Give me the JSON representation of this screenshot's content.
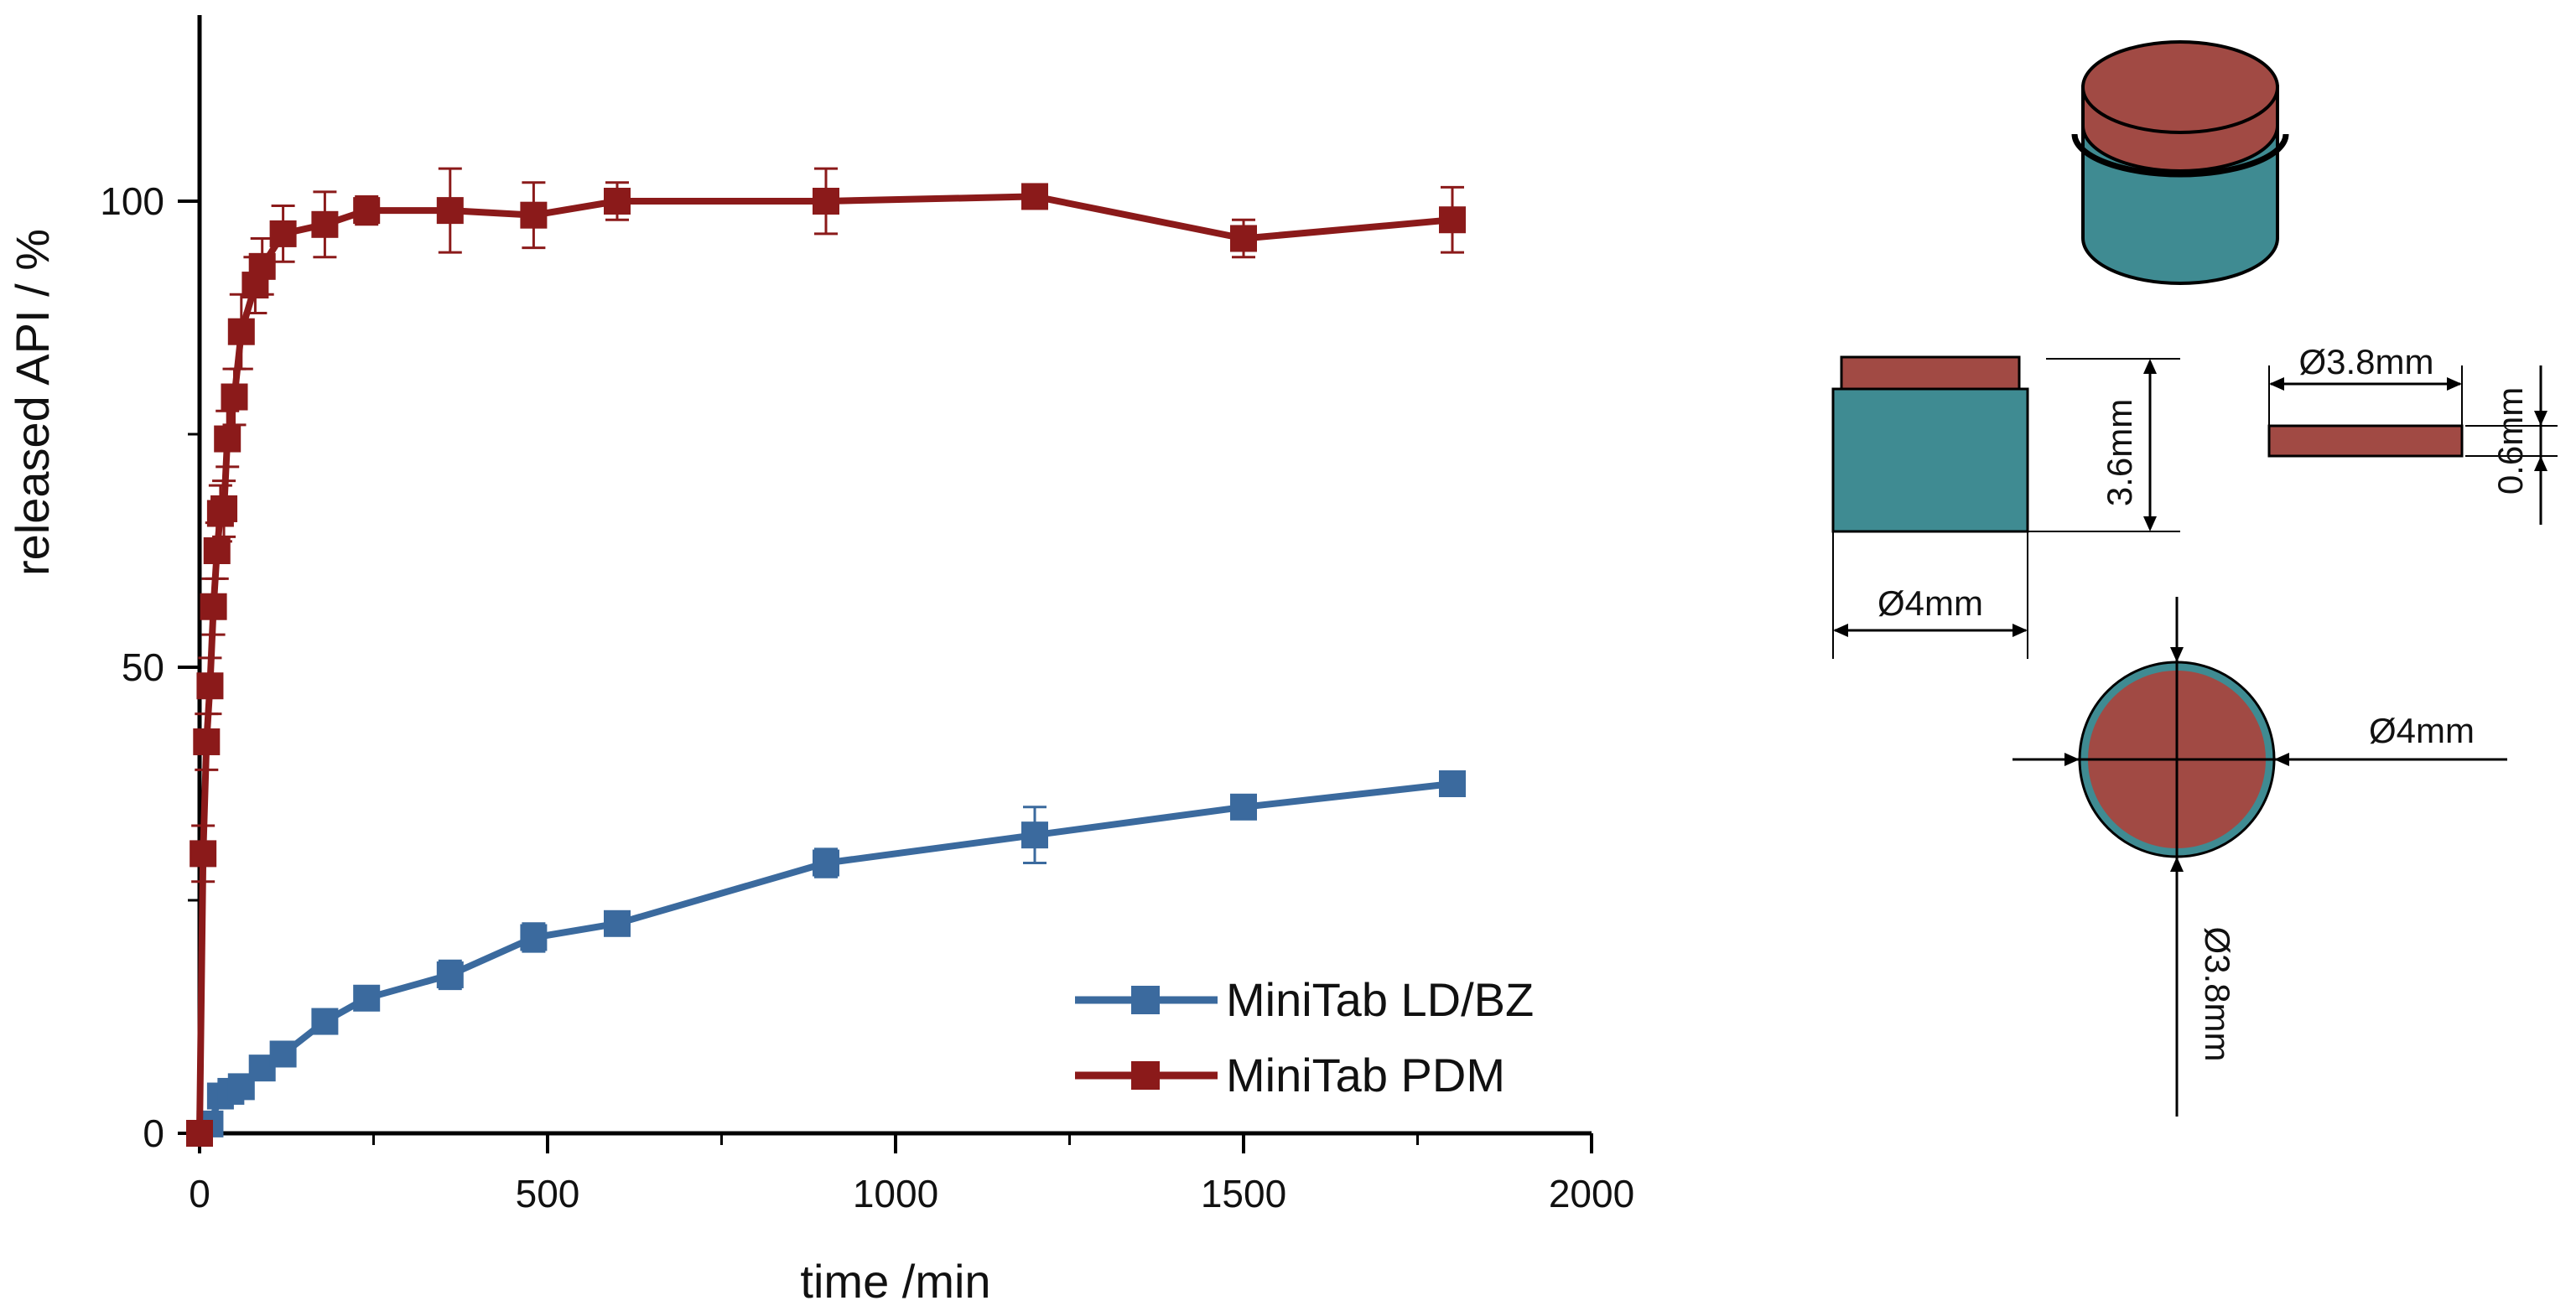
{
  "chart_data": {
    "type": "line",
    "xlabel": "time /min",
    "ylabel": "released API / %",
    "xlim": [
      0,
      2000
    ],
    "ylim": [
      0,
      120
    ],
    "xticks": [
      0,
      500,
      1000,
      1500,
      2000
    ],
    "yticks": [
      0,
      50,
      100
    ],
    "legend_position": "bottom-right",
    "series": [
      {
        "name": "MiniTab LD/BZ",
        "color": "#3b6a9e",
        "x": [
          0,
          15,
          30,
          45,
          60,
          90,
          120,
          180,
          240,
          360,
          480,
          600,
          900,
          1200,
          1500,
          1800
        ],
        "y": [
          0,
          1,
          4,
          4.5,
          5,
          7,
          8.5,
          12,
          14.5,
          17,
          21,
          22.5,
          29,
          32,
          35,
          37.5
        ],
        "err": [
          0,
          0.8,
          1.0,
          1.0,
          1.0,
          1.0,
          1.2,
          1.2,
          1.2,
          1.5,
          1.5,
          1.2,
          1.5,
          3.0,
          1.0,
          1.2
        ]
      },
      {
        "name": "MiniTab PDM",
        "color": "#8b1a1a",
        "x": [
          0,
          5,
          10,
          15,
          20,
          25,
          30,
          35,
          40,
          50,
          60,
          80,
          90,
          120,
          180,
          240,
          360,
          480,
          600,
          900,
          1200,
          1500,
          1800
        ],
        "y": [
          0,
          30,
          42,
          48,
          56.5,
          62.5,
          66.5,
          67,
          74.5,
          79,
          86,
          91,
          93,
          96.5,
          97.5,
          99,
          99,
          98.5,
          100,
          100,
          100.5,
          96,
          98
        ],
        "err": [
          0,
          3,
          3,
          3,
          3,
          3,
          3,
          3,
          3,
          3,
          4,
          3,
          3,
          3,
          3.5,
          1.5,
          4.5,
          3.5,
          2,
          3.5,
          1,
          2,
          3.5
        ]
      }
    ]
  },
  "schematic": {
    "side_height": "3.6mm",
    "side_diameter": "Ø4mm",
    "layer_diameter": "Ø3.8mm",
    "layer_thickness": "0.6mm",
    "top_outer_diameter": "Ø4mm",
    "top_inner_diameter": "Ø3.8mm",
    "core_color": "#3f8b92",
    "layer_color": "#a14a44"
  }
}
